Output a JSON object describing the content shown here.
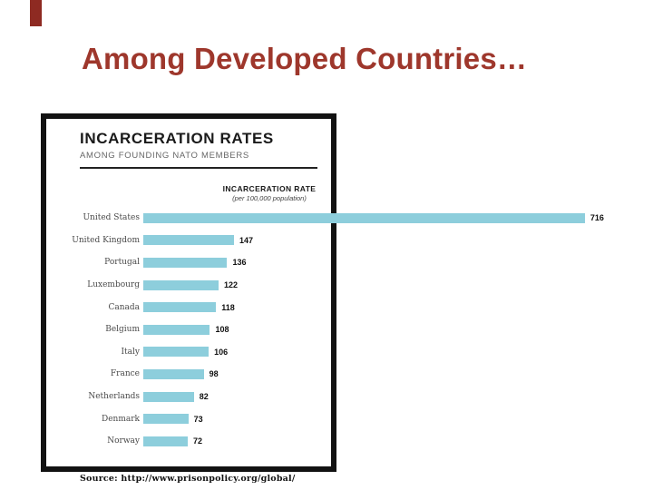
{
  "slide": {
    "title": "Among Developed Countries…",
    "accent_color": "#8e2a22",
    "title_color": "#9e372c"
  },
  "chart": {
    "title": "INCARCERATION RATES",
    "subtitle": "AMONG FOUNDING NATO MEMBERS",
    "axis_header": "INCARCERATION RATE",
    "axis_subheader": "(per 100,000 population)",
    "source": "Source: http://www.prisonpolicy.org/global/",
    "bar_color": "#8dcedc"
  },
  "chart_data": {
    "type": "bar",
    "orientation": "horizontal",
    "title": "INCARCERATION RATES",
    "subtitle": "AMONG FOUNDING NATO MEMBERS",
    "xlabel": "INCARCERATION RATE (per 100,000 population)",
    "xlim": [
      0,
      750
    ],
    "grid": false,
    "legend": "none",
    "categories": [
      "United States",
      "United Kingdom",
      "Portugal",
      "Luxembourg",
      "Canada",
      "Belgium",
      "Italy",
      "France",
      "Netherlands",
      "Denmark",
      "Norway"
    ],
    "values": [
      716,
      147,
      136,
      122,
      118,
      108,
      106,
      98,
      82,
      73,
      72
    ],
    "source": "Source: http://www.prisonpolicy.org/global/"
  }
}
